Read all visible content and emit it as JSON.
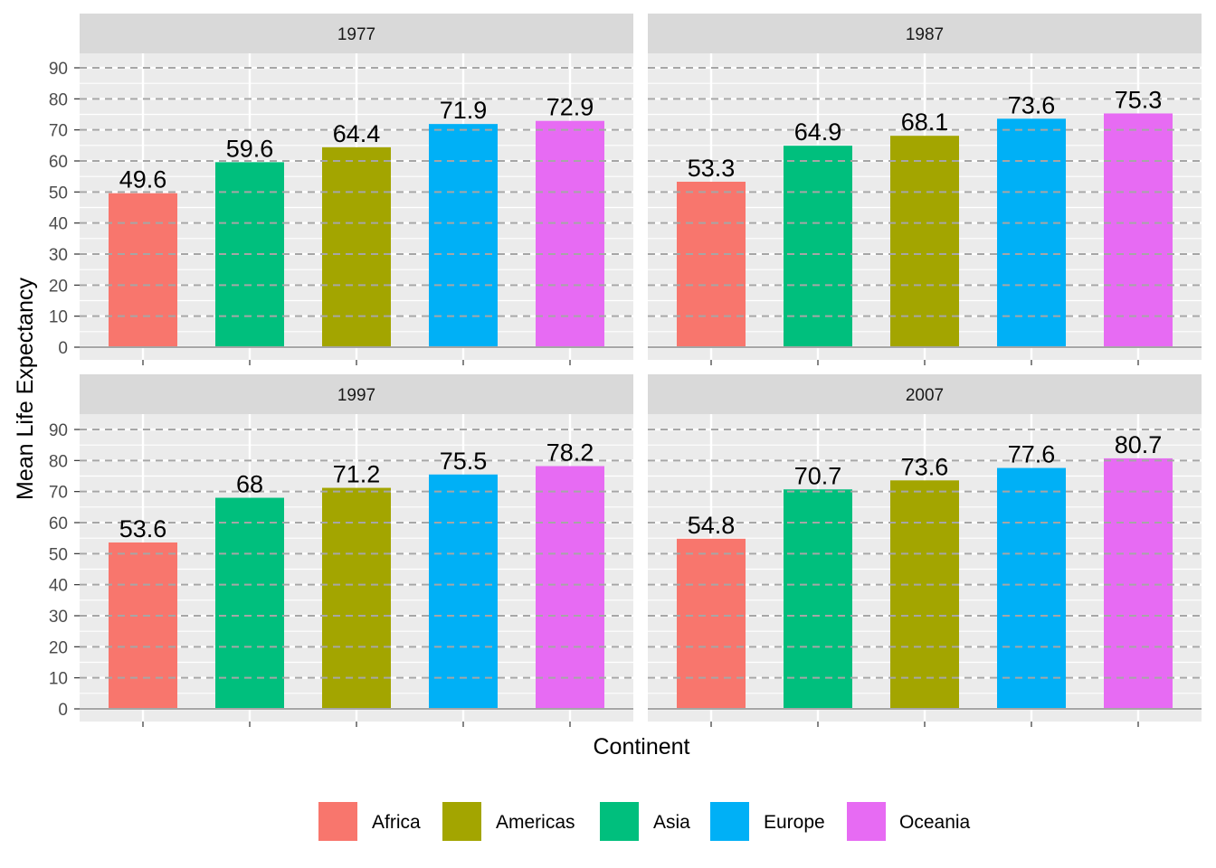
{
  "chart_data": {
    "type": "bar",
    "facet_by": "year",
    "facets": [
      {
        "label": "1977",
        "values": [
          49.6,
          59.6,
          64.4,
          71.9,
          72.9
        ],
        "value_labels": [
          "49.6",
          "59.6",
          "64.4",
          "71.9",
          "72.9"
        ]
      },
      {
        "label": "1987",
        "values": [
          53.3,
          64.9,
          68.1,
          73.6,
          75.3
        ],
        "value_labels": [
          "53.3",
          "64.9",
          "68.1",
          "73.6",
          "75.3"
        ]
      },
      {
        "label": "1997",
        "values": [
          53.6,
          68.0,
          71.2,
          75.5,
          78.2
        ],
        "value_labels": [
          "53.6",
          "68",
          "71.2",
          "75.5",
          "78.2"
        ]
      },
      {
        "label": "2007",
        "values": [
          54.8,
          70.7,
          73.6,
          77.6,
          80.7
        ],
        "value_labels": [
          "54.8",
          "70.7",
          "73.6",
          "77.6",
          "80.7"
        ]
      }
    ],
    "bar_order": [
      "Africa",
      "Asia",
      "Americas",
      "Europe",
      "Oceania"
    ],
    "legend": {
      "position": "bottom",
      "entries": [
        {
          "label": "Africa",
          "color": "#F8766D"
        },
        {
          "label": "Americas",
          "color": "#A3A500"
        },
        {
          "label": "Asia",
          "color": "#00BF7D"
        },
        {
          "label": "Europe",
          "color": "#00B0F6"
        },
        {
          "label": "Oceania",
          "color": "#E76BF3"
        }
      ]
    },
    "xlabel": "Continent",
    "ylabel": "Mean Life Expectancy",
    "ylim": [
      0,
      90
    ],
    "yticks": [
      0,
      10,
      20,
      30,
      40,
      50,
      60,
      70,
      80,
      90
    ],
    "grid": true,
    "hline_dashed_at": [
      0,
      10,
      20,
      30,
      40,
      50,
      60,
      70,
      80,
      90
    ],
    "colors": {
      "panel_bg": "#EBEBEB",
      "strip_bg": "#D9D9D9",
      "grid": "#FFFFFF",
      "hline": "#A6A6A6"
    }
  }
}
